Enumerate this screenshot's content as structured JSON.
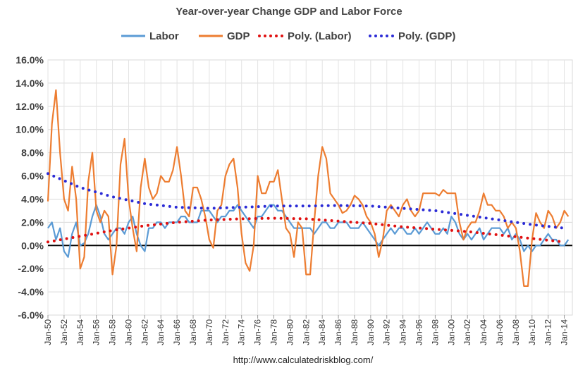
{
  "chart_data": {
    "type": "line",
    "title": "Year-over-year Change GDP and Labor Force",
    "source": "http://www.calculatedriskblog.com/",
    "xlim": [
      1950,
      2015
    ],
    "xticks": [
      {
        "value": 1950,
        "label": "Jan-50"
      },
      {
        "value": 1952,
        "label": "Jan-52"
      },
      {
        "value": 1954,
        "label": "Jan-54"
      },
      {
        "value": 1956,
        "label": "Jan-56"
      },
      {
        "value": 1958,
        "label": "Jan-58"
      },
      {
        "value": 1960,
        "label": "Jan-60"
      },
      {
        "value": 1962,
        "label": "Jan-62"
      },
      {
        "value": 1964,
        "label": "Jan-64"
      },
      {
        "value": 1966,
        "label": "Jan-66"
      },
      {
        "value": 1968,
        "label": "Jan-68"
      },
      {
        "value": 1970,
        "label": "Jan-70"
      },
      {
        "value": 1972,
        "label": "Jan-72"
      },
      {
        "value": 1974,
        "label": "Jan-74"
      },
      {
        "value": 1976,
        "label": "Jan-76"
      },
      {
        "value": 1978,
        "label": "Jan-78"
      },
      {
        "value": 1980,
        "label": "Jan-80"
      },
      {
        "value": 1982,
        "label": "Jan-82"
      },
      {
        "value": 1984,
        "label": "Jan-84"
      },
      {
        "value": 1986,
        "label": "Jan-86"
      },
      {
        "value": 1988,
        "label": "Jan-88"
      },
      {
        "value": 1990,
        "label": "Jan-90"
      },
      {
        "value": 1992,
        "label": "Jan-92"
      },
      {
        "value": 1994,
        "label": "Jan-94"
      },
      {
        "value": 1996,
        "label": "Jan-96"
      },
      {
        "value": 1998,
        "label": "Jan-98"
      },
      {
        "value": 2000,
        "label": "Jan-00"
      },
      {
        "value": 2002,
        "label": "Jan-02"
      },
      {
        "value": 2004,
        "label": "Jan-04"
      },
      {
        "value": 2006,
        "label": "Jan-06"
      },
      {
        "value": 2008,
        "label": "Jan-08"
      },
      {
        "value": 2010,
        "label": "Jan-10"
      },
      {
        "value": 2012,
        "label": "Jan-12"
      },
      {
        "value": 2014,
        "label": "Jan-14"
      }
    ],
    "ylim": [
      -6,
      16
    ],
    "yticks": [
      {
        "value": -6,
        "label": "-6.0%"
      },
      {
        "value": -4,
        "label": "-4.0%"
      },
      {
        "value": -2,
        "label": "-2.0%"
      },
      {
        "value": 0,
        "label": "0.0%"
      },
      {
        "value": 2,
        "label": "2.0%"
      },
      {
        "value": 4,
        "label": "4.0%"
      },
      {
        "value": 6,
        "label": "6.0%"
      },
      {
        "value": 8,
        "label": "8.0%"
      },
      {
        "value": 10,
        "label": "10.0%"
      },
      {
        "value": 12,
        "label": "12.0%"
      },
      {
        "value": 14,
        "label": "14.0%"
      },
      {
        "value": 16,
        "label": "16.0%"
      }
    ],
    "grid": true,
    "legend": "top",
    "x": [
      1950,
      1950.5,
      1951,
      1951.5,
      1952,
      1952.5,
      1953,
      1953.5,
      1954,
      1954.5,
      1955,
      1955.5,
      1956,
      1956.5,
      1957,
      1957.5,
      1958,
      1958.5,
      1959,
      1959.5,
      1960,
      1960.5,
      1961,
      1961.5,
      1962,
      1962.5,
      1963,
      1963.5,
      1964,
      1964.5,
      1965,
      1965.5,
      1966,
      1966.5,
      1967,
      1967.5,
      1968,
      1968.5,
      1969,
      1969.5,
      1970,
      1970.5,
      1971,
      1971.5,
      1972,
      1972.5,
      1973,
      1973.5,
      1974,
      1974.5,
      1975,
      1975.5,
      1976,
      1976.5,
      1977,
      1977.5,
      1978,
      1978.5,
      1979,
      1979.5,
      1980,
      1980.5,
      1981,
      1981.5,
      1982,
      1982.5,
      1983,
      1983.5,
      1984,
      1984.5,
      1985,
      1985.5,
      1986,
      1986.5,
      1987,
      1987.5,
      1988,
      1988.5,
      1989,
      1989.5,
      1990,
      1990.5,
      1991,
      1991.5,
      1992,
      1992.5,
      1993,
      1993.5,
      1994,
      1994.5,
      1995,
      1995.5,
      1996,
      1996.5,
      1997,
      1997.5,
      1998,
      1998.5,
      1999,
      1999.5,
      2000,
      2000.5,
      2001,
      2001.5,
      2002,
      2002.5,
      2003,
      2003.5,
      2004,
      2004.5,
      2005,
      2005.5,
      2006,
      2006.5,
      2007,
      2007.5,
      2008,
      2008.5,
      2009,
      2009.5,
      2010,
      2010.5,
      2011,
      2011.5,
      2012,
      2012.5,
      2013,
      2013.5,
      2014,
      2014.5
    ],
    "series": [
      {
        "name": "Labor",
        "color": "#5b9bd5",
        "style": "solid",
        "values": [
          1.5,
          2,
          0.5,
          1.5,
          -0.5,
          -1,
          1,
          2,
          0,
          0.2,
          1,
          2.5,
          3.5,
          2.5,
          1,
          0.5,
          1,
          1.5,
          1.5,
          1,
          2,
          2.5,
          1,
          0,
          -0.5,
          1.5,
          1.5,
          2,
          2,
          1.5,
          2,
          2,
          2,
          2.5,
          2.5,
          2,
          2,
          2,
          3,
          3,
          3,
          2.5,
          2,
          2.5,
          2.5,
          3,
          3,
          3.5,
          3,
          2.5,
          2,
          1.5,
          2.5,
          2.5,
          3,
          3.5,
          3.5,
          3,
          3,
          2.5,
          2,
          1.5,
          1.5,
          1.5,
          1.5,
          1.5,
          1,
          1.5,
          2,
          2,
          1.5,
          1.5,
          2,
          2,
          2,
          1.5,
          1.5,
          1.5,
          2,
          1.5,
          1,
          0.5,
          0,
          0.5,
          1,
          1.5,
          1,
          1.5,
          1.5,
          1,
          1,
          1.5,
          1,
          1.5,
          2,
          1.5,
          1,
          1,
          1.5,
          1,
          2.5,
          2,
          1,
          0.5,
          1,
          0.5,
          1,
          1.5,
          0.5,
          1,
          1.5,
          1.5,
          1.5,
          1,
          1.5,
          0.5,
          1,
          0.5,
          -0.5,
          0,
          -0.5,
          0,
          0,
          0.5,
          1,
          0.5,
          0.5,
          0,
          0,
          0.5
        ]
      },
      {
        "name": "GDP",
        "color": "#ed7d31",
        "style": "solid",
        "values": [
          3.8,
          10.5,
          13.4,
          8,
          4,
          3,
          6.8,
          4,
          -2,
          -1,
          5.5,
          8,
          3,
          2,
          3,
          2.5,
          -2.5,
          0,
          7,
          9.2,
          4,
          1.5,
          -0.5,
          5,
          7.5,
          5,
          4,
          4.5,
          6,
          5.5,
          5.5,
          6.5,
          8.5,
          6,
          3,
          2.5,
          5,
          5,
          4,
          2.5,
          0.5,
          -0.2,
          3,
          3.5,
          6,
          7,
          7.5,
          5,
          1,
          -1.5,
          -2.2,
          0,
          6,
          4.5,
          4.5,
          5.5,
          5.5,
          6.5,
          4,
          1.5,
          1,
          -1,
          2,
          1.5,
          -2.5,
          -2.5,
          2,
          6,
          8.5,
          7.5,
          4.5,
          4,
          3.5,
          2.8,
          3,
          3.5,
          4.3,
          4,
          3.5,
          2.5,
          2,
          1,
          -1,
          0.5,
          3,
          3.5,
          3,
          2.5,
          3.5,
          4,
          3,
          2.5,
          3,
          4.5,
          4.5,
          4.5,
          4.5,
          4.3,
          4.8,
          4.5,
          4.5,
          4.5,
          2,
          0.5,
          1.5,
          2,
          2,
          3,
          4.5,
          3.5,
          3.5,
          3,
          3,
          2.5,
          1.5,
          2,
          1.5,
          -0.5,
          -3.5,
          -3.5,
          0.5,
          2.8,
          2,
          1.5,
          3,
          2.5,
          1.5,
          2,
          3,
          2.5
        ]
      },
      {
        "name": "Poly. (Labor)",
        "color": "#e01010",
        "style": "dotted",
        "x": [
          1950,
          1954,
          1958,
          1962,
          1966,
          1970,
          1974,
          1978,
          1982,
          1986,
          1990,
          1994,
          1998,
          2002,
          2006,
          2010,
          2014
        ],
        "values": [
          0.3,
          0.8,
          1.3,
          1.7,
          2,
          2.2,
          2.3,
          2.35,
          2.3,
          2.1,
          1.9,
          1.6,
          1.4,
          1.2,
          0.9,
          0.6,
          0.3
        ]
      },
      {
        "name": "Poly. (GDP)",
        "color": "#2b2bd6",
        "style": "dotted",
        "x": [
          1950,
          1954,
          1958,
          1962,
          1966,
          1970,
          1974,
          1978,
          1982,
          1986,
          1990,
          1994,
          1998,
          2002,
          2006,
          2010,
          2014
        ],
        "values": [
          6.2,
          5,
          4.2,
          3.6,
          3.3,
          3.2,
          3.3,
          3.4,
          3.4,
          3.45,
          3.4,
          3.2,
          3,
          2.6,
          2.2,
          1.8,
          1.5
        ]
      }
    ]
  }
}
